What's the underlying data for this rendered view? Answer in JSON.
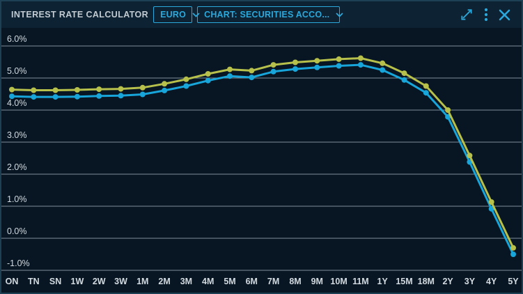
{
  "header": {
    "title": "INTEREST RATE CALCULATOR",
    "currency_dropdown": {
      "value": "EURO"
    },
    "chart_dropdown": {
      "value": "CHART: SECURITIES ACCO..."
    },
    "icons": [
      {
        "name": "expand-icon",
        "glyph": "diagonal-resize-arrows"
      },
      {
        "name": "kebab-menu-icon",
        "glyph": "three-vertical-dots"
      },
      {
        "name": "close-icon",
        "glyph": "x-mark"
      }
    ]
  },
  "colors": {
    "accent": "#2BA8DC",
    "series_yellow": "#B6C04A",
    "series_blue": "#17A5DA",
    "gridline": "#9FAEB8",
    "panel_bg": "#081624",
    "header_bg": "#0D2232",
    "border": "#1E4055",
    "axis_label": "#D2DADF"
  },
  "chart_data": {
    "type": "line",
    "title": "",
    "xlabel": "",
    "ylabel": "",
    "grid": true,
    "legend_position": "none",
    "markers": true,
    "ylim": [
      -1.4,
      6.4
    ],
    "categories": [
      "ON",
      "TN",
      "SN",
      "1W",
      "2W",
      "3W",
      "1M",
      "2M",
      "3M",
      "4M",
      "5M",
      "6M",
      "7M",
      "8M",
      "9M",
      "10M",
      "11M",
      "1Y",
      "15M",
      "18M",
      "2Y",
      "3Y",
      "4Y",
      "5Y"
    ],
    "yticks": [
      {
        "label": "6.0%",
        "value": 6
      },
      {
        "label": "5.0%",
        "value": 5
      },
      {
        "label": "4.0%",
        "value": 4
      },
      {
        "label": "3.0%",
        "value": 3
      },
      {
        "label": "2.0%",
        "value": 2
      },
      {
        "label": "1.0%",
        "value": 1
      },
      {
        "label": "0.0%",
        "value": 0
      },
      {
        "label": "-1.0%",
        "value": -1
      }
    ],
    "series": [
      {
        "name": "blue-line",
        "color": "#17A5DA",
        "values": [
          4.43,
          4.41,
          4.41,
          4.42,
          4.44,
          4.45,
          4.49,
          4.61,
          4.75,
          4.92,
          5.06,
          5.02,
          5.2,
          5.28,
          5.33,
          5.38,
          5.41,
          5.25,
          4.94,
          4.54,
          3.79,
          2.38,
          0.92,
          -0.5
        ]
      },
      {
        "name": "yellow-line",
        "color": "#B6C04A",
        "values": [
          4.64,
          4.62,
          4.62,
          4.63,
          4.65,
          4.66,
          4.7,
          4.82,
          4.96,
          5.13,
          5.27,
          5.23,
          5.41,
          5.49,
          5.54,
          5.59,
          5.62,
          5.46,
          5.15,
          4.75,
          4.0,
          2.58,
          1.13,
          -0.3
        ]
      }
    ]
  }
}
